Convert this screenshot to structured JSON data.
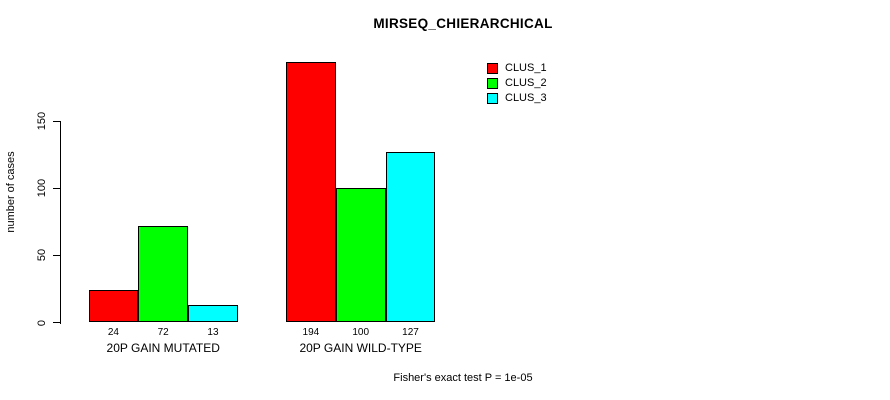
{
  "title": "MIRSEQ_CHIERARCHICAL",
  "footer": "Fisher's exact test P = 1e-05",
  "chart_data": {
    "type": "bar",
    "title": "MIRSEQ_CHIERARCHICAL",
    "xlabel": "",
    "ylabel": "number of cases",
    "categories": [
      "20P GAIN MUTATED",
      "20P GAIN WILD-TYPE"
    ],
    "series": [
      {
        "name": "CLUS_1",
        "color": "#ff0000",
        "values": [
          24,
          194
        ]
      },
      {
        "name": "CLUS_2",
        "color": "#00ff00",
        "values": [
          72,
          100
        ]
      },
      {
        "name": "CLUS_3",
        "color": "#00ffff",
        "values": [
          13,
          127
        ]
      }
    ],
    "bar_value_labels": [
      [
        "24",
        "72",
        "13"
      ],
      [
        "194",
        "100",
        "127"
      ]
    ],
    "yticks": [
      0,
      50,
      100,
      150
    ],
    "ylim": [
      0,
      150
    ],
    "grid": false,
    "legend_position": "top-right",
    "annotation": "Fisher's exact test P = 1e-05"
  }
}
